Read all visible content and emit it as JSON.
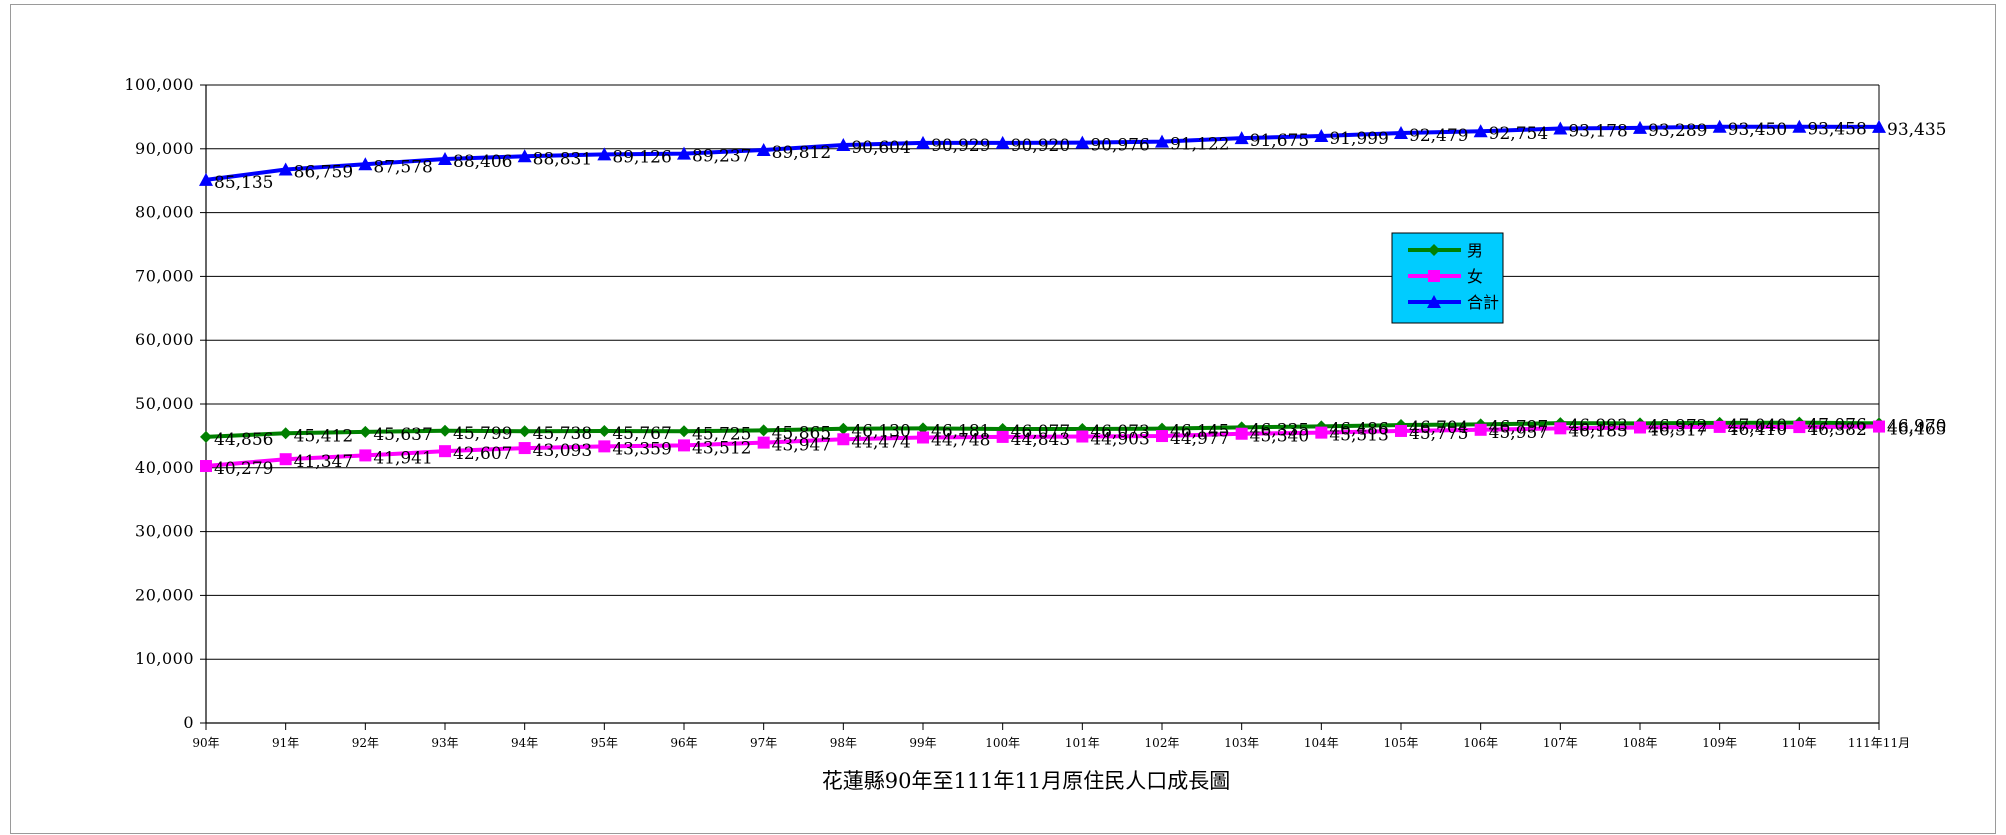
{
  "chart_data": {
    "type": "line",
    "title": "花蓮縣90年至111年11月原住民人口成長圖",
    "xlabel": "",
    "ylabel": "",
    "ylim": [
      0,
      100000
    ],
    "ytick_labels": [
      "0",
      "10,000",
      "20,000",
      "30,000",
      "40,000",
      "50,000",
      "60,000",
      "70,000",
      "80,000",
      "90,000",
      "100,000"
    ],
    "categories": [
      "90年",
      "91年",
      "92年",
      "93年",
      "94年",
      "95年",
      "96年",
      "97年",
      "98年",
      "99年",
      "100年",
      "101年",
      "102年",
      "103年",
      "104年",
      "105年",
      "106年",
      "107年",
      "108年",
      "109年",
      "110年",
      "111年11月"
    ],
    "grid": true,
    "legend_position": "right-center",
    "series": [
      {
        "name": "男",
        "color": "#008000",
        "marker": "diamond",
        "values": [
          44856,
          45412,
          45637,
          45799,
          45738,
          45767,
          45725,
          45865,
          46130,
          46181,
          46077,
          46073,
          46145,
          46335,
          46486,
          46704,
          46797,
          46993,
          46972,
          47040,
          47076,
          46970
        ],
        "labels": [
          "44,856",
          "45,412",
          "45,637",
          "45,799",
          "45,738",
          "45,767",
          "45,725",
          "45,865",
          "46,130",
          "46,181",
          "46,077",
          "46,073",
          "46,145",
          "46,335",
          "46,486",
          "46,704",
          "46,797",
          "46,993",
          "46,972",
          "47,040",
          "47,076",
          "46,970"
        ]
      },
      {
        "name": "女",
        "color": "#ff00ff",
        "marker": "square",
        "values": [
          40279,
          41347,
          41941,
          42607,
          43093,
          43359,
          43512,
          43947,
          44474,
          44748,
          44843,
          44903,
          44977,
          45340,
          45513,
          45775,
          45957,
          46185,
          46317,
          46410,
          46382,
          46465
        ],
        "labels": [
          "40,279",
          "41,347",
          "41,941",
          "42,607",
          "43,093",
          "43,359",
          "43,512",
          "43,947",
          "44,474",
          "44,748",
          "44,843",
          "44,903",
          "44,977",
          "45,340",
          "45,513",
          "45,775",
          "45,957",
          "46,185",
          "46,317",
          "46,410",
          "46,382",
          "46,465"
        ]
      },
      {
        "name": "合計",
        "color": "#0000ff",
        "marker": "triangle",
        "values": [
          85135,
          86759,
          87578,
          88406,
          88831,
          89126,
          89237,
          89812,
          90604,
          90929,
          90920,
          90976,
          91122,
          91675,
          91999,
          92479,
          92754,
          93178,
          93289,
          93450,
          93458,
          93435
        ],
        "labels": [
          "85,135",
          "86,759",
          "87,578",
          "88,406",
          "88,831",
          "89,126",
          "89,237",
          "89,812",
          "90,604",
          "90,929",
          "90,920",
          "90,976",
          "91,122",
          "91,675",
          "91,999",
          "92,479",
          "92,754",
          "93,178",
          "93,289",
          "93,450",
          "93,458",
          "93,435"
        ]
      }
    ],
    "legend_bg": "#00ccff"
  }
}
